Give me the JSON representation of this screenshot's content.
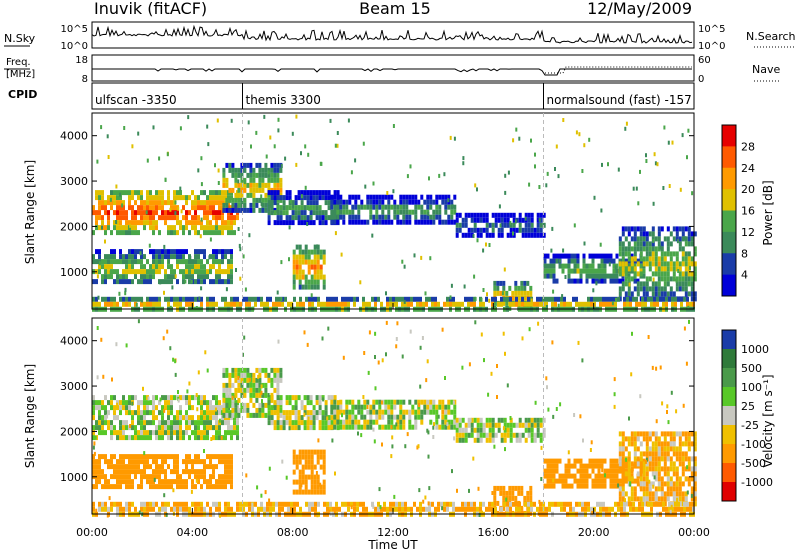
{
  "header": {
    "station": "Inuvik (fitACF)",
    "beam": "Beam 15",
    "date": "12/May/2009"
  },
  "summary_panels": {
    "nsky_label": "N.Sky",
    "nsearch_label": "N.Search",
    "nsky_ticks": [
      "10^5",
      "10^0"
    ],
    "nsearch_ticks": [
      "10^5",
      "10^0"
    ],
    "freq_label_top": "Freq.",
    "freq_label_bottom": "[MHz]",
    "freq_ticks": [
      "18",
      "8"
    ],
    "nave_label": "Nave",
    "nave_ticks": [
      "60",
      "0"
    ],
    "cpid_label": "CPID",
    "cpid_segments": [
      {
        "label": "ulfscan -3350",
        "start_hour": 0.0
      },
      {
        "label": "themis 3300",
        "start_hour": 6.0
      },
      {
        "label": "normalsound (fast) -157",
        "start_hour": 18.0
      }
    ]
  },
  "power_panel": {
    "ylabel": "Slant Range [km]",
    "colorbar_label": "Power [dB]",
    "colorbar_ticks": [
      "28",
      "24",
      "20",
      "16",
      "12",
      "8",
      "4"
    ],
    "colorbar_colors": [
      "#e60000",
      "#ff5a00",
      "#ff9a00",
      "#e0c000",
      "#4aa64a",
      "#3b8a5a",
      "#1a3ca8",
      "#0000d8"
    ]
  },
  "velocity_panel": {
    "ylabel": "Slant Range [km]",
    "colorbar_label": "Velocity [m s⁻¹]",
    "colorbar_ticks": [
      "1000",
      "500",
      "100",
      "25",
      "-25",
      "-100",
      "-500",
      "-1000"
    ],
    "colorbar_colors": [
      "#1a3ca8",
      "#2f7a3a",
      "#4a9a4a",
      "#58c828",
      "#c8c8c0",
      "#f0c000",
      "#ff9a00",
      "#ff5a00",
      "#e00000"
    ]
  },
  "x_axis": {
    "label": "Time UT",
    "ticks": [
      "00:00",
      "04:00",
      "08:00",
      "12:00",
      "16:00",
      "20:00",
      "00:00"
    ]
  },
  "chart_data": {
    "type": "heatmap",
    "title": "Inuvik (fitACF) Beam 15 12/May/2009",
    "xlabel": "Time UT",
    "ylabel": "Slant Range [km]",
    "xlim_hours": [
      0,
      24
    ],
    "ylim_km": [
      180,
      4500
    ],
    "yticks_km": [
      1000,
      2000,
      3000,
      4000
    ],
    "approx_echo_bands": [
      {
        "start_hour": 0.0,
        "end_hour": 5.8,
        "range_low_km": 1900,
        "range_high_km": 2800,
        "power_db": 26,
        "velocity": 25
      },
      {
        "start_hour": 0.0,
        "end_hour": 5.6,
        "range_low_km": 750,
        "range_high_km": 1500,
        "power_db": 16,
        "velocity": -300
      },
      {
        "start_hour": 5.2,
        "end_hour": 7.5,
        "range_low_km": 2400,
        "range_high_km": 3400,
        "power_db": 18,
        "velocity": 25
      },
      {
        "start_hour": 7.0,
        "end_hour": 9.8,
        "range_low_km": 2100,
        "range_high_km": 2800,
        "power_db": 12,
        "velocity": 25
      },
      {
        "start_hour": 8.0,
        "end_hour": 9.2,
        "range_low_km": 700,
        "range_high_km": 1600,
        "power_db": 22,
        "velocity": -300
      },
      {
        "start_hour": 9.5,
        "end_hour": 14.5,
        "range_low_km": 2100,
        "range_high_km": 2700,
        "power_db": 12,
        "velocity": 25
      },
      {
        "start_hour": 14.5,
        "end_hour": 18.0,
        "range_low_km": 1800,
        "range_high_km": 2300,
        "power_db": 8,
        "velocity": 25
      },
      {
        "start_hour": 16.0,
        "end_hour": 17.5,
        "range_low_km": 200,
        "range_high_km": 800,
        "power_db": 20,
        "velocity": -300
      },
      {
        "start_hour": 18.0,
        "end_hour": 22.0,
        "range_low_km": 800,
        "range_high_km": 1400,
        "power_db": 14,
        "velocity": -300
      },
      {
        "start_hour": 21.0,
        "end_hour": 24.0,
        "range_low_km": 400,
        "range_high_km": 2000,
        "power_db": 16,
        "velocity": -100
      },
      {
        "start_hour": 0.0,
        "end_hour": 24.0,
        "range_low_km": 180,
        "range_high_km": 450,
        "power_db": 20,
        "velocity": -100
      }
    ]
  }
}
